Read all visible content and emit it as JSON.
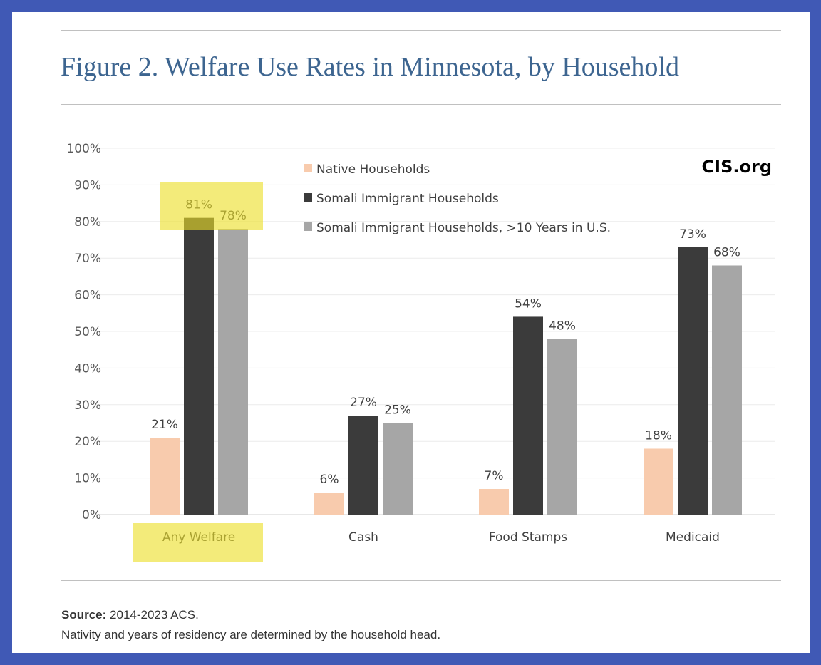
{
  "title": "Figure 2. Welfare Use Rates in Minnesota, by Household",
  "watermark": "CIS.org",
  "source_label": "Source:",
  "source_text": "2014-2023 ACS.",
  "note": "Nativity and years of residency are determined by the household head.",
  "colors": {
    "native": "#f8cbad",
    "somali": "#3b3b3b",
    "somali10": "#a6a6a6",
    "highlight": "rgba(236,222,40,0.62)",
    "border": "#4059b5"
  },
  "chart_data": {
    "type": "bar",
    "title": "Figure 2. Welfare Use Rates in Minnesota, by Household",
    "categories": [
      "Any Welfare",
      "Cash",
      "Food Stamps",
      "Medicaid"
    ],
    "series": [
      {
        "name": "Native Households",
        "values": [
          21,
          6,
          7,
          18
        ],
        "labels": [
          "21%",
          "6%",
          "7%",
          "18%"
        ]
      },
      {
        "name": "Somali Immigrant Households",
        "values": [
          81,
          27,
          54,
          73
        ],
        "labels": [
          "81%",
          "27%",
          "54%",
          "73%"
        ]
      },
      {
        "name": "Somali Immigrant Households, >10 Years in U.S.",
        "values": [
          78,
          25,
          48,
          68
        ],
        "labels": [
          "78%",
          "25%",
          "48%",
          "68%"
        ]
      }
    ],
    "yticks": [
      "0%",
      "10%",
      "20%",
      "30%",
      "40%",
      "50%",
      "60%",
      "70%",
      "80%",
      "90%",
      "100%"
    ],
    "ylim": [
      0,
      100
    ],
    "grid": true,
    "legend_placement": "top-center",
    "highlighted_category": "Any Welfare"
  }
}
